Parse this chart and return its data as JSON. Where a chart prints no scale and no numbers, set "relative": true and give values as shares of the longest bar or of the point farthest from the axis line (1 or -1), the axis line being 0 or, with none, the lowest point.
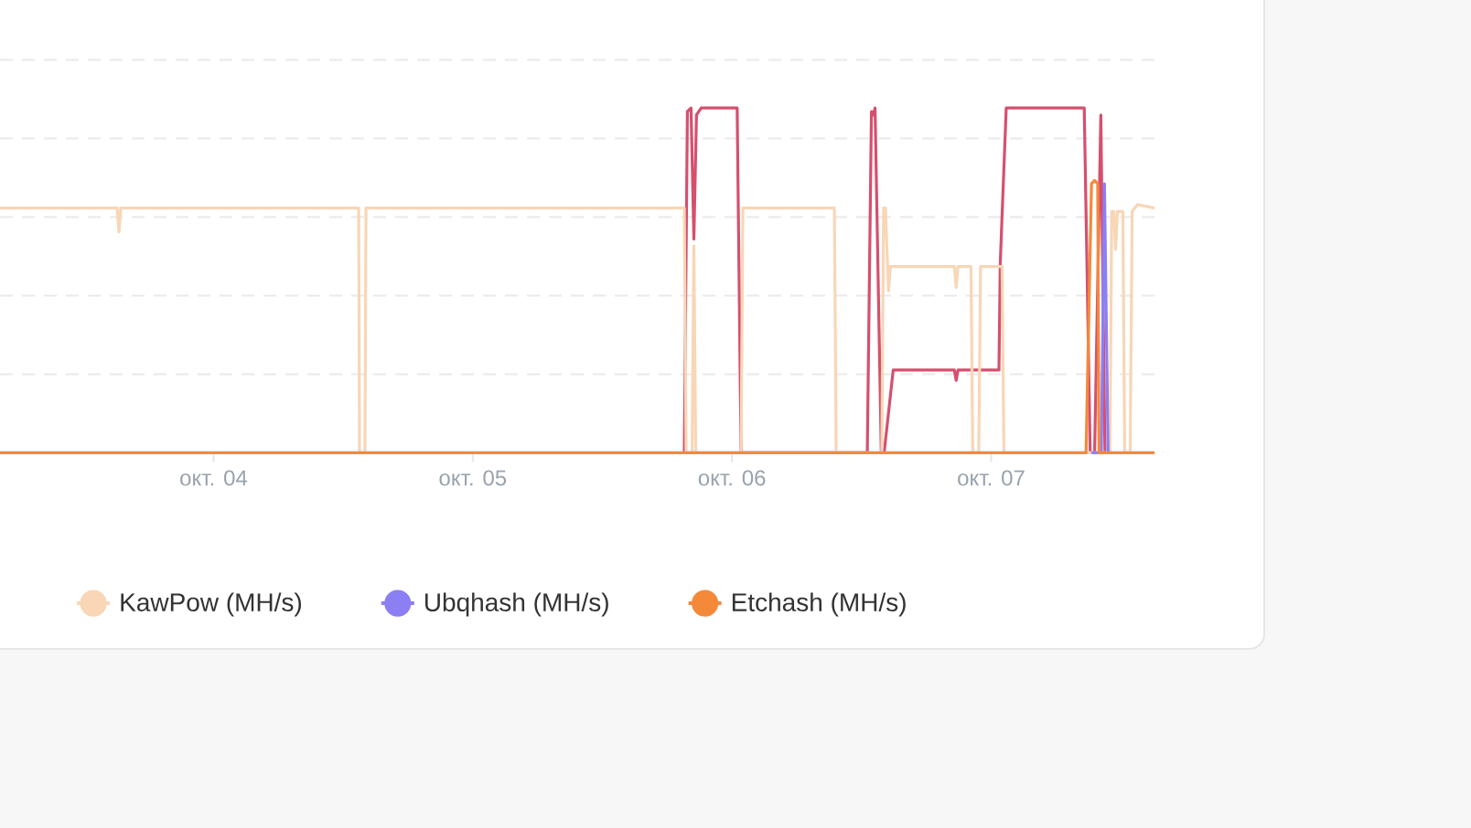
{
  "chart_data": {
    "type": "line",
    "relative": true,
    "xlim": [
      3.176,
      7.63
    ],
    "xticks": [
      {
        "value": 4,
        "label": "окт. 04"
      },
      {
        "value": 5,
        "label": "окт. 05"
      },
      {
        "value": 6,
        "label": "окт. 06"
      },
      {
        "value": 7,
        "label": "окт. 07"
      }
    ],
    "grid": "y",
    "legend": "bottom",
    "line_style": "solid",
    "series": [
      {
        "color": "#d5506e",
        "x": [
          5.816,
          5.828,
          5.842,
          5.853,
          5.863,
          5.881,
          6.02,
          6.035,
          6.522,
          6.538,
          6.545,
          6.552,
          6.576,
          6.587,
          6.622,
          6.858,
          6.865,
          6.872,
          7.03,
          7.035,
          7.058,
          7.359,
          7.382,
          7.399,
          7.423,
          7.439
        ],
        "values": [
          0,
          0.99,
          1,
          0.62,
          0.98,
          1,
          1,
          0,
          0,
          0.99,
          0.98,
          1,
          0,
          0,
          0.24,
          0.24,
          0.21,
          0.24,
          0.24,
          0.55,
          1,
          1,
          0,
          0,
          0.98,
          0
        ]
      },
      {
        "name": "KawPow (MH/s)",
        "color": "#f8d6b6",
        "x": [
          3.176,
          3.628,
          3.635,
          3.642,
          4.56,
          4.563,
          4.584,
          4.588,
          5.816,
          5.823,
          5.846,
          5.853,
          5.86,
          6.035,
          6.042,
          6.395,
          6.402,
          6.578,
          6.585,
          6.592,
          6.604,
          6.611,
          6.858,
          6.865,
          6.872,
          6.922,
          6.929,
          6.952,
          6.959,
          7.042,
          7.049,
          7.458,
          7.465,
          7.473,
          7.48,
          7.487,
          7.508,
          7.515,
          7.536,
          7.544,
          7.565,
          7.63
        ],
        "values": [
          0.71,
          0.71,
          0.64,
          0.71,
          0.71,
          0,
          0,
          0.71,
          0.71,
          0,
          0,
          0.6,
          0,
          0,
          0.71,
          0.71,
          0,
          0,
          0.71,
          0.71,
          0.47,
          0.54,
          0.54,
          0.48,
          0.54,
          0.54,
          0,
          0,
          0.54,
          0.54,
          0,
          0,
          0.7,
          0.7,
          0.59,
          0.7,
          0.7,
          0,
          0,
          0.7,
          0.72,
          0.71
        ]
      },
      {
        "name": "Ubqhash (MH/s)",
        "color": "#8b7ff3",
        "x": [
          7.387,
          7.425,
          7.437,
          7.451
        ],
        "values": [
          0,
          0,
          0.78,
          0
        ]
      },
      {
        "name": "Etchash (MH/s)",
        "color": "#f4893a",
        "x": [
          3.176,
          7.366,
          7.387,
          7.399,
          7.411,
          7.416,
          7.63
        ],
        "values": [
          0,
          0,
          0.78,
          0.79,
          0.78,
          0,
          0
        ]
      }
    ]
  }
}
